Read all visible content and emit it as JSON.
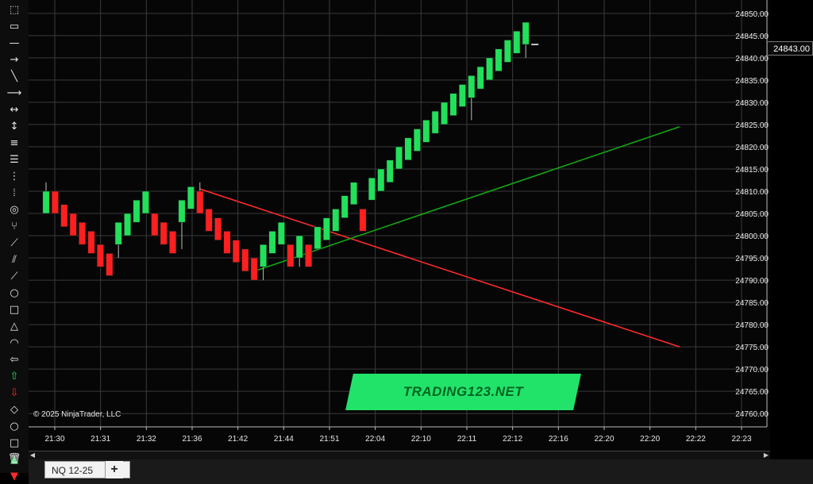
{
  "instrument_tab": "NQ 12-25",
  "add_tab_label": "+",
  "copyright": "© 2025 NinjaTrader, LLC",
  "brand": "TRADING123.NET",
  "last_price": "24843.00",
  "toolbar_icons": [
    "dotted-rect-icon",
    "selection-icon",
    "line-icon",
    "ray-icon",
    "diagonal-line-icon",
    "arrow-line-icon",
    "extended-line-icon",
    "vertical-line-icon",
    "horizontal-lines-icon",
    "fib-retracement-icon",
    "fib-extension-icon",
    "time-lines-icon",
    "spiral-icon",
    "andrews-pitchfork-icon",
    "gann-fan-icon",
    "parallel-lines-icon",
    "regression-channel-icon",
    "ellipse-icon",
    "rectangle-icon",
    "triangle-icon",
    "arc-icon",
    "ruler-icon",
    "arrow-up-icon",
    "arrow-down-icon",
    "diamond-icon",
    "circle-icon",
    "square-icon",
    "triangle-up-icon",
    "triangle-down-icon",
    "trash-icon"
  ],
  "colors": {
    "up": "#22e05a",
    "down": "#ff1f1f",
    "trend_down": "#ff2a2a",
    "trend_up": "#13a813",
    "grid": "#3a3a3a",
    "brand": "#22e36a"
  },
  "chart_data": {
    "type": "candlestick",
    "bar_type": "renko",
    "brick_size": 5,
    "y_axis": {
      "min": 24757,
      "max": 24853,
      "ticks": [
        24850,
        24845,
        24840,
        24835,
        24830,
        24825,
        24820,
        24815,
        24810,
        24805,
        24800,
        24795,
        24790,
        24785,
        24780,
        24775,
        24770,
        24765,
        24760
      ]
    },
    "x_tick_labels": [
      "21:30",
      "21:31",
      "21:32",
      "21:36",
      "21:42",
      "21:44",
      "21:51",
      "22:04",
      "22:10",
      "22:11",
      "22:12",
      "22:16",
      "22:20",
      "22:20",
      "22:22",
      "22:23"
    ],
    "grid": true,
    "bricks": [
      {
        "open": 24805,
        "close": 24810,
        "high": 24812,
        "low": 24805
      },
      {
        "open": 24810,
        "close": 24805,
        "high": 24810,
        "low": 24805
      },
      {
        "open": 24807,
        "close": 24802,
        "high": 24807,
        "low": 24802
      },
      {
        "open": 24805,
        "close": 24800,
        "high": 24805,
        "low": 24800
      },
      {
        "open": 24803,
        "close": 24798,
        "high": 24803,
        "low": 24798
      },
      {
        "open": 24801,
        "close": 24796,
        "high": 24801,
        "low": 24796
      },
      {
        "open": 24798,
        "close": 24793,
        "high": 24798,
        "low": 24793
      },
      {
        "open": 24796,
        "close": 24791,
        "high": 24796,
        "low": 24791
      },
      {
        "open": 24798,
        "close": 24803,
        "high": 24803,
        "low": 24795
      },
      {
        "open": 24800,
        "close": 24805,
        "high": 24805,
        "low": 24800
      },
      {
        "open": 24803,
        "close": 24808,
        "high": 24808,
        "low": 24803
      },
      {
        "open": 24805,
        "close": 24810,
        "high": 24810,
        "low": 24805
      },
      {
        "open": 24805,
        "close": 24800,
        "high": 24805,
        "low": 24800
      },
      {
        "open": 24803,
        "close": 24798,
        "high": 24803,
        "low": 24798
      },
      {
        "open": 24801,
        "close": 24796,
        "high": 24801,
        "low": 24796
      },
      {
        "open": 24803,
        "close": 24808,
        "high": 24808,
        "low": 24797
      },
      {
        "open": 24806,
        "close": 24811,
        "high": 24811,
        "low": 24806
      },
      {
        "open": 24810,
        "close": 24805,
        "high": 24812,
        "low": 24805
      },
      {
        "open": 24806,
        "close": 24801,
        "high": 24806,
        "low": 24801
      },
      {
        "open": 24804,
        "close": 24799,
        "high": 24804,
        "low": 24799
      },
      {
        "open": 24801,
        "close": 24796,
        "high": 24801,
        "low": 24796
      },
      {
        "open": 24799,
        "close": 24794,
        "high": 24799,
        "low": 24794
      },
      {
        "open": 24797,
        "close": 24792,
        "high": 24797,
        "low": 24792
      },
      {
        "open": 24795,
        "close": 24790,
        "high": 24795,
        "low": 24790
      },
      {
        "open": 24793,
        "close": 24798,
        "high": 24798,
        "low": 24790
      },
      {
        "open": 24796,
        "close": 24801,
        "high": 24801,
        "low": 24796
      },
      {
        "open": 24798,
        "close": 24803,
        "high": 24803,
        "low": 24798
      },
      {
        "open": 24798,
        "close": 24793,
        "high": 24798,
        "low": 24793
      },
      {
        "open": 24795,
        "close": 24800,
        "high": 24800,
        "low": 24793
      },
      {
        "open": 24798,
        "close": 24793,
        "high": 24798,
        "low": 24793
      },
      {
        "open": 24797,
        "close": 24802,
        "high": 24802,
        "low": 24797
      },
      {
        "open": 24799,
        "close": 24804,
        "high": 24804,
        "low": 24799
      },
      {
        "open": 24801,
        "close": 24806,
        "high": 24806,
        "low": 24801
      },
      {
        "open": 24804,
        "close": 24809,
        "high": 24809,
        "low": 24804
      },
      {
        "open": 24807,
        "close": 24812,
        "high": 24812,
        "low": 24807
      },
      {
        "open": 24806,
        "close": 24801,
        "high": 24806,
        "low": 24801
      },
      {
        "open": 24808,
        "close": 24813,
        "high": 24813,
        "low": 24808
      },
      {
        "open": 24810,
        "close": 24815,
        "high": 24815,
        "low": 24810
      },
      {
        "open": 24812,
        "close": 24817,
        "high": 24817,
        "low": 24812
      },
      {
        "open": 24815,
        "close": 24820,
        "high": 24820,
        "low": 24815
      },
      {
        "open": 24817,
        "close": 24822,
        "high": 24822,
        "low": 24817
      },
      {
        "open": 24819,
        "close": 24824,
        "high": 24824,
        "low": 24819
      },
      {
        "open": 24821,
        "close": 24826,
        "high": 24826,
        "low": 24821
      },
      {
        "open": 24823,
        "close": 24828,
        "high": 24828,
        "low": 24823
      },
      {
        "open": 24825,
        "close": 24830,
        "high": 24830,
        "low": 24825
      },
      {
        "open": 24827,
        "close": 24832,
        "high": 24832,
        "low": 24827
      },
      {
        "open": 24829,
        "close": 24834,
        "high": 24834,
        "low": 24829
      },
      {
        "open": 24831,
        "close": 24836,
        "high": 24836,
        "low": 24826
      },
      {
        "open": 24833,
        "close": 24838,
        "high": 24838,
        "low": 24833
      },
      {
        "open": 24835,
        "close": 24840,
        "high": 24840,
        "low": 24835
      },
      {
        "open": 24837,
        "close": 24842,
        "high": 24842,
        "low": 24837
      },
      {
        "open": 24839,
        "close": 24844,
        "high": 24844,
        "low": 24839
      },
      {
        "open": 24841,
        "close": 24846,
        "high": 24846,
        "low": 24841
      },
      {
        "open": 24843,
        "close": 24848,
        "high": 24848,
        "low": 24840
      }
    ],
    "trendlines": [
      {
        "name": "down",
        "from": {
          "bar": 17,
          "price": 24810.5
        },
        "to": {
          "bar": 70,
          "price": 24775.0
        }
      },
      {
        "name": "up",
        "from": {
          "bar": 23,
          "price": 24792.0
        },
        "to": {
          "bar": 70,
          "price": 24824.5
        }
      }
    ]
  }
}
